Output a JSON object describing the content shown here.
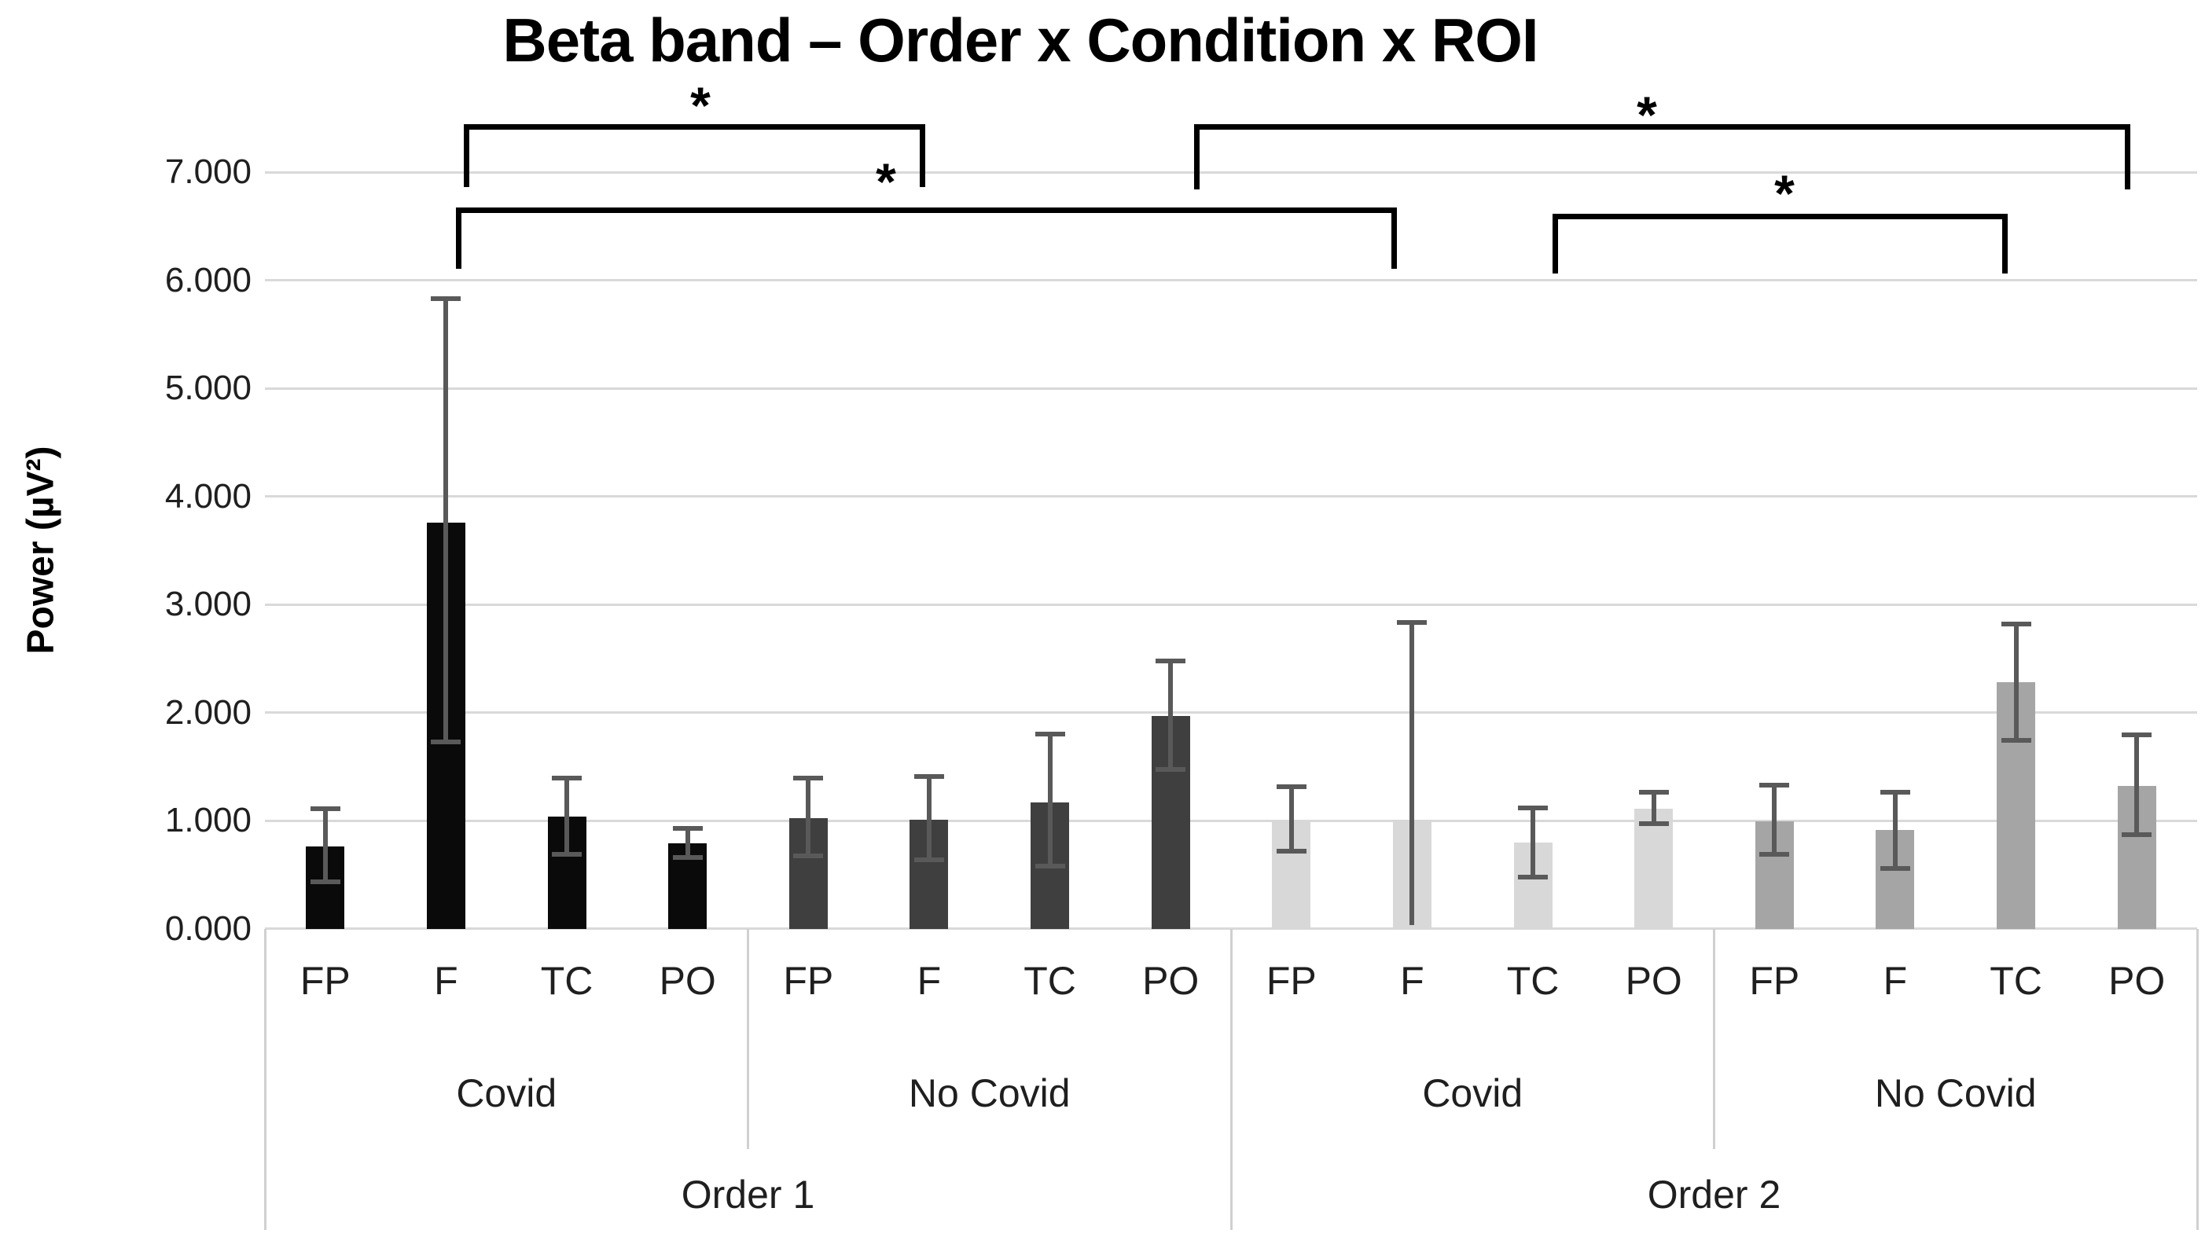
{
  "chart_data": {
    "type": "bar",
    "title": "Beta band – Order x Condition x ROI",
    "ylabel": "Power (µV²)",
    "ylim": [
      0,
      7
    ],
    "y_tick_labels": [
      "0.000",
      "1.000",
      "2.000",
      "3.000",
      "4.000",
      "5.000",
      "6.000",
      "7.000"
    ],
    "grid": true,
    "legend": "none",
    "roi_labels": [
      "FP",
      "F",
      "TC",
      "PO"
    ],
    "condition_labels": [
      "Covid",
      "No Covid",
      "Covid",
      "No Covid"
    ],
    "order_labels": [
      "Order 1",
      "Order 2"
    ],
    "error_bar_color": "#595959",
    "gridline_color": "#d9d9d9",
    "groups": [
      {
        "order": "Order 1",
        "condition": "Covid",
        "color": "#0a0a0a",
        "bars": [
          {
            "roi": "FP",
            "value": 0.76,
            "err_low": 0.43,
            "err_high": 1.11
          },
          {
            "roi": "F",
            "value": 3.76,
            "err_low": 1.73,
            "err_high": 5.83
          },
          {
            "roi": "TC",
            "value": 1.04,
            "err_low": 0.69,
            "err_high": 1.39
          },
          {
            "roi": "PO",
            "value": 0.79,
            "err_low": 0.66,
            "err_high": 0.93
          }
        ]
      },
      {
        "order": "Order 1",
        "condition": "No Covid",
        "color": "#3f3f3f",
        "bars": [
          {
            "roi": "FP",
            "value": 1.02,
            "err_low": 0.67,
            "err_high": 1.39
          },
          {
            "roi": "F",
            "value": 1.01,
            "err_low": 0.64,
            "err_high": 1.41
          },
          {
            "roi": "TC",
            "value": 1.17,
            "err_low": 0.58,
            "err_high": 1.8
          },
          {
            "roi": "PO",
            "value": 1.97,
            "err_low": 1.47,
            "err_high": 2.48
          }
        ]
      },
      {
        "order": "Order 2",
        "condition": "Covid",
        "color": "#d8d8d8",
        "bars": [
          {
            "roi": "FP",
            "value": 0.99,
            "err_low": 0.72,
            "err_high": 1.31
          },
          {
            "roi": "F",
            "value": 1.01,
            "err_low": 0.03,
            "err_high": 2.83
          },
          {
            "roi": "TC",
            "value": 0.8,
            "err_low": 0.48,
            "err_high": 1.12
          },
          {
            "roi": "PO",
            "value": 1.11,
            "err_low": 0.97,
            "err_high": 1.26
          }
        ]
      },
      {
        "order": "Order 2",
        "condition": "No Covid",
        "color": "#a5a5a5",
        "bars": [
          {
            "roi": "FP",
            "value": 0.99,
            "err_low": 0.69,
            "err_high": 1.33
          },
          {
            "roi": "F",
            "value": 0.91,
            "err_low": 0.56,
            "err_high": 1.26
          },
          {
            "roi": "TC",
            "value": 2.28,
            "err_low": 1.74,
            "err_high": 2.82
          },
          {
            "roi": "PO",
            "value": 1.32,
            "err_low": 0.87,
            "err_high": 1.79
          }
        ]
      }
    ],
    "significance_brackets": [
      {
        "label": "*",
        "from": "Order 1 Covid F",
        "to": "Order 1 No Covid F"
      },
      {
        "label": "*",
        "from": "Order 1 Covid F",
        "to": "Order 2 Covid F"
      },
      {
        "label": "*",
        "from": "Order 1 No Covid PO",
        "to": "Order 2 No Covid PO"
      },
      {
        "label": "*",
        "from": "Order 2 Covid TC",
        "to": "Order 2 No Covid TC"
      }
    ]
  }
}
